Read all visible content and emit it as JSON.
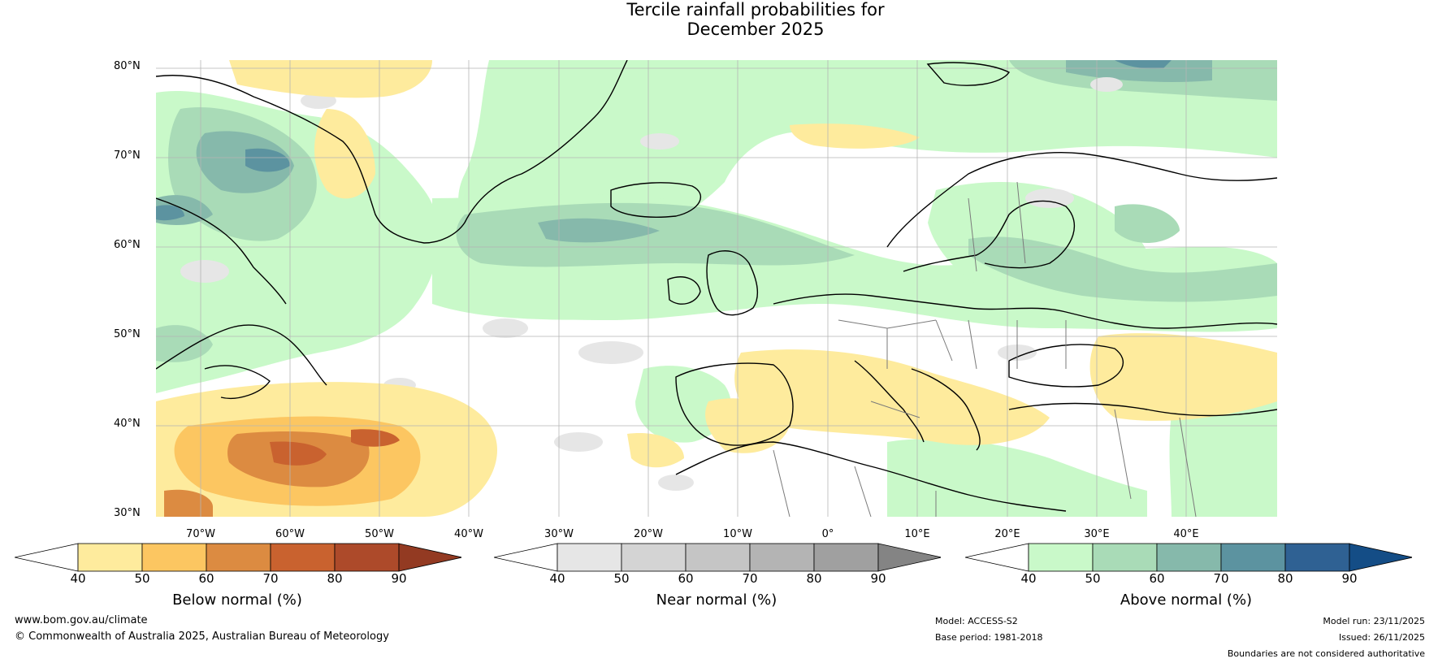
{
  "title": {
    "line1": "Tercile rainfall probabilities for",
    "line2": "December 2025"
  },
  "map": {
    "lat_labels": [
      "80°N",
      "70°N",
      "60°N",
      "50°N",
      "40°N",
      "30°N"
    ],
    "lon_labels": [
      "70°W",
      "60°W",
      "50°W",
      "40°W",
      "30°W",
      "20°W",
      "10°W",
      "0°",
      "10°E",
      "20°E",
      "30°E",
      "40°E"
    ],
    "grid": true
  },
  "colorbars": [
    {
      "label": "Below normal (%)",
      "ticks": [
        "40",
        "50",
        "60",
        "70",
        "80",
        "90"
      ],
      "colors": [
        "#ffffff",
        "#feeb9d",
        "#fcc661",
        "#dc8b41",
        "#c9622f",
        "#ad4a2a",
        "#933a22"
      ]
    },
    {
      "label": "Near normal (%)",
      "ticks": [
        "40",
        "50",
        "60",
        "70",
        "80",
        "90"
      ],
      "colors": [
        "#ffffff",
        "#e6e6e6",
        "#d4d4d4",
        "#c5c5c5",
        "#b4b4b4",
        "#a0a0a0",
        "#848484"
      ]
    },
    {
      "label": "Above normal (%)",
      "ticks": [
        "40",
        "50",
        "60",
        "70",
        "80",
        "90"
      ],
      "colors": [
        "#ffffff",
        "#c9f9c9",
        "#a9dbb7",
        "#86b9ab",
        "#5c93a0",
        "#2f6193",
        "#144d86"
      ]
    }
  ],
  "footer": {
    "url": "www.bom.gov.au/climate",
    "copyright": "© Commonwealth of Australia 2025, Australian Bureau of Meteorology",
    "model": "Model: ACCESS-S2",
    "base_period": "Base period: 1981-2018",
    "model_run": "Model run: 23/11/2025",
    "issued": "Issued: 26/11/2025",
    "disclaimer": "Boundaries are not considered authoritative"
  }
}
